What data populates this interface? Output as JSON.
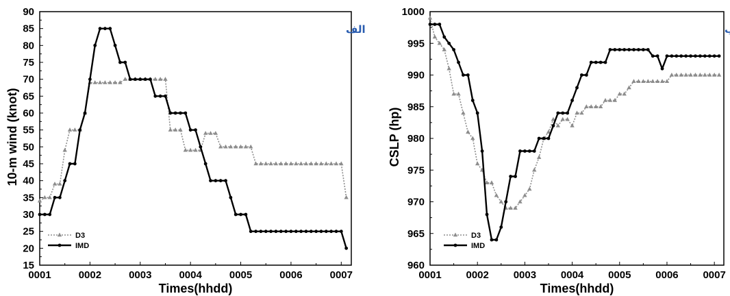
{
  "colors": {
    "d3": "#8c8c8c",
    "imd": "#000000",
    "panel_label": "#2a5db0"
  },
  "chart_data": [
    {
      "type": "line",
      "panel_label": "الف",
      "xlabel": "Times(hhdd)",
      "ylabel": "10-m wind (knot)",
      "xticks": [
        "0001",
        "0002",
        "0003",
        "0004",
        "0005",
        "0006",
        "0007"
      ],
      "ylim": [
        15,
        90
      ],
      "yticks": [
        15,
        20,
        25,
        30,
        35,
        40,
        45,
        50,
        55,
        60,
        65,
        70,
        75,
        80,
        85,
        90
      ],
      "legend_position": "bottom-left",
      "series": [
        {
          "name": "D3",
          "style": "dotted-triangle",
          "x": [
            1.0,
            1.1,
            1.2,
            1.3,
            1.4,
            1.5,
            1.6,
            1.7,
            1.8,
            1.9,
            2.0,
            2.1,
            2.2,
            2.3,
            2.4,
            2.5,
            2.6,
            2.7,
            2.8,
            2.9,
            3.0,
            3.1,
            3.2,
            3.3,
            3.4,
            3.5,
            3.6,
            3.7,
            3.8,
            3.9,
            4.0,
            4.1,
            4.2,
            4.3,
            4.4,
            4.5,
            4.6,
            4.7,
            4.8,
            4.9,
            5.0,
            5.1,
            5.2,
            5.3,
            5.4,
            5.5,
            5.6,
            5.7,
            5.8,
            5.9,
            6.0,
            6.1,
            6.2,
            6.3,
            6.4,
            6.5,
            6.6,
            6.7,
            6.8,
            6.9,
            7.0,
            7.1
          ],
          "values": [
            34,
            35,
            35,
            39,
            39,
            49,
            55,
            55,
            55,
            60,
            69,
            69,
            69,
            69,
            69,
            69,
            69,
            70,
            70,
            70,
            70,
            70,
            70,
            70,
            70,
            70,
            55,
            55,
            55,
            49,
            49,
            49,
            49,
            54,
            54,
            54,
            50,
            50,
            50,
            50,
            50,
            50,
            50,
            45,
            45,
            45,
            45,
            45,
            45,
            45,
            45,
            45,
            45,
            45,
            45,
            45,
            45,
            45,
            45,
            45,
            45,
            35
          ]
        },
        {
          "name": "IMD",
          "style": "solid-circle",
          "x": [
            1.0,
            1.1,
            1.2,
            1.3,
            1.4,
            1.5,
            1.6,
            1.7,
            1.8,
            1.9,
            2.0,
            2.1,
            2.2,
            2.3,
            2.4,
            2.5,
            2.6,
            2.7,
            2.8,
            2.9,
            3.0,
            3.1,
            3.2,
            3.3,
            3.4,
            3.5,
            3.6,
            3.7,
            3.8,
            3.9,
            4.0,
            4.1,
            4.2,
            4.3,
            4.4,
            4.5,
            4.6,
            4.7,
            4.8,
            4.9,
            5.0,
            5.1,
            5.2,
            5.3,
            5.4,
            5.5,
            5.6,
            5.7,
            5.8,
            5.9,
            6.0,
            6.1,
            6.2,
            6.3,
            6.4,
            6.5,
            6.6,
            6.7,
            6.8,
            6.9,
            7.0,
            7.1
          ],
          "values": [
            30,
            30,
            30,
            35,
            35,
            40,
            45,
            45,
            55,
            60,
            70,
            80,
            85,
            85,
            85,
            80,
            75,
            75,
            70,
            70,
            70,
            70,
            70,
            65,
            65,
            65,
            60,
            60,
            60,
            60,
            55,
            55,
            50,
            45,
            40,
            40,
            40,
            40,
            35,
            30,
            30,
            30,
            25,
            25,
            25,
            25,
            25,
            25,
            25,
            25,
            25,
            25,
            25,
            25,
            25,
            25,
            25,
            25,
            25,
            25,
            25,
            20
          ]
        }
      ]
    },
    {
      "type": "line",
      "panel_label": "ب",
      "xlabel": "Times(hhdd)",
      "ylabel": "CSLP (hp)",
      "xticks": [
        "0001",
        "0002",
        "0003",
        "0004",
        "0005",
        "0006",
        "0007"
      ],
      "ylim": [
        960,
        1000
      ],
      "yticks": [
        960,
        965,
        970,
        975,
        980,
        985,
        990,
        995,
        1000
      ],
      "legend_position": "bottom-left",
      "series": [
        {
          "name": "D3",
          "style": "dotted-triangle",
          "x": [
            1.0,
            1.1,
            1.2,
            1.3,
            1.4,
            1.5,
            1.6,
            1.7,
            1.8,
            1.9,
            2.0,
            2.1,
            2.2,
            2.3,
            2.4,
            2.5,
            2.6,
            2.7,
            2.8,
            2.9,
            3.0,
            3.1,
            3.2,
            3.3,
            3.4,
            3.5,
            3.6,
            3.7,
            3.8,
            3.9,
            4.0,
            4.1,
            4.2,
            4.3,
            4.4,
            4.5,
            4.6,
            4.7,
            4.8,
            4.9,
            5.0,
            5.1,
            5.2,
            5.3,
            5.4,
            5.5,
            5.6,
            5.7,
            5.8,
            5.9,
            6.0,
            6.1,
            6.2,
            6.3,
            6.4,
            6.5,
            6.6,
            6.7,
            6.8,
            6.9,
            7.0,
            7.1
          ],
          "values": [
            999,
            996,
            995,
            994,
            991,
            987,
            987,
            984,
            981,
            980,
            976,
            975,
            973,
            973,
            971,
            970,
            969,
            969,
            969,
            970,
            971,
            972,
            975,
            977,
            980,
            981,
            983,
            982,
            983,
            983,
            982,
            984,
            984,
            985,
            985,
            985,
            985,
            986,
            986,
            986,
            987,
            987,
            988,
            989,
            989,
            989,
            989,
            989,
            989,
            989,
            989,
            990,
            990,
            990,
            990,
            990,
            990,
            990,
            990,
            990,
            990,
            990
          ]
        },
        {
          "name": "IMD",
          "style": "solid-circle",
          "x": [
            1.0,
            1.1,
            1.2,
            1.3,
            1.4,
            1.5,
            1.6,
            1.7,
            1.8,
            1.9,
            2.0,
            2.1,
            2.2,
            2.3,
            2.4,
            2.5,
            2.6,
            2.7,
            2.8,
            2.9,
            3.0,
            3.1,
            3.2,
            3.3,
            3.4,
            3.5,
            3.6,
            3.7,
            3.8,
            3.9,
            4.0,
            4.1,
            4.2,
            4.3,
            4.4,
            4.5,
            4.6,
            4.7,
            4.8,
            4.9,
            5.0,
            5.1,
            5.2,
            5.3,
            5.4,
            5.5,
            5.6,
            5.7,
            5.8,
            5.9,
            6.0,
            6.1,
            6.2,
            6.3,
            6.4,
            6.5,
            6.6,
            6.7,
            6.8,
            6.9,
            7.0,
            7.1
          ],
          "values": [
            998,
            998,
            998,
            996,
            995,
            994,
            992,
            990,
            990,
            986,
            984,
            978,
            968,
            964,
            964,
            966,
            970,
            974,
            974,
            978,
            978,
            978,
            978,
            980,
            980,
            980,
            982,
            984,
            984,
            984,
            986,
            988,
            990,
            990,
            992,
            992,
            992,
            992,
            994,
            994,
            994,
            994,
            994,
            994,
            994,
            994,
            994,
            993,
            993,
            991,
            993,
            993,
            993,
            993,
            993,
            993,
            993,
            993,
            993,
            993,
            993,
            993
          ]
        }
      ]
    }
  ]
}
